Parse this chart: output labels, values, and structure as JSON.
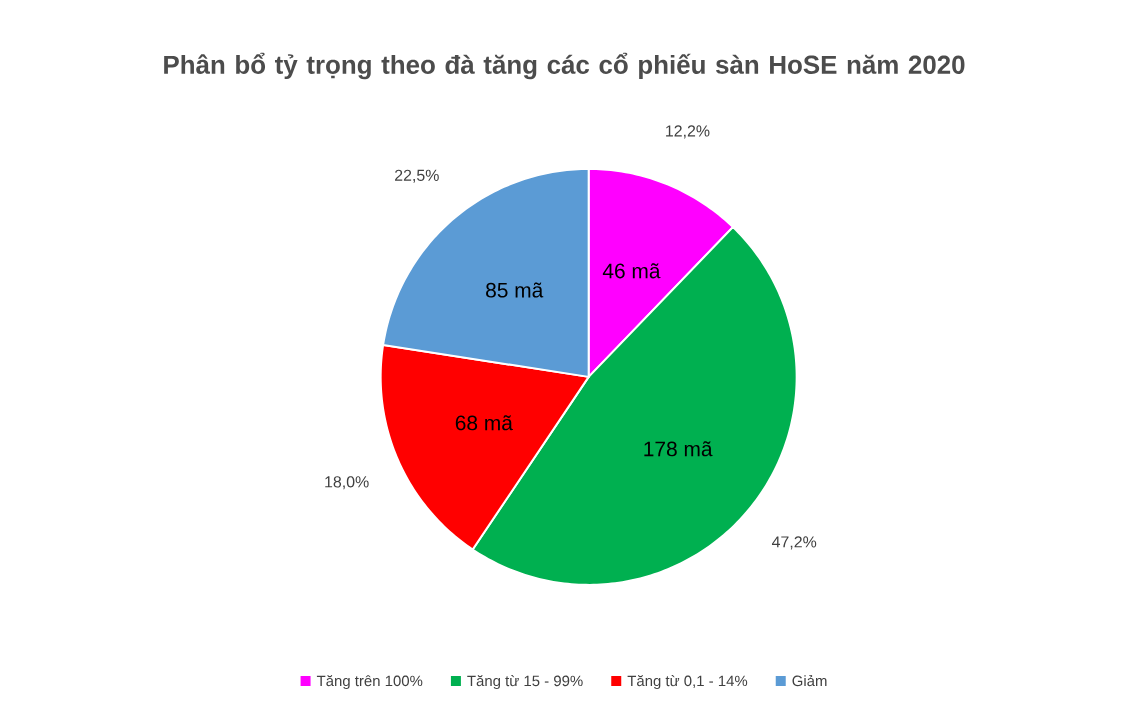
{
  "chart_data": {
    "type": "pie",
    "title": "Phân bổ tỷ trọng theo đà tăng các cổ phiếu sàn HoSE năm 2020",
    "categories": [
      "Tăng trên 100%",
      "Tăng từ 15 - 99%",
      "Tăng từ 0,1 - 14%",
      "Giảm"
    ],
    "values": [
      46,
      178,
      68,
      85
    ],
    "value_labels": [
      "46 mã",
      "178 mã",
      "68 mã",
      "85 mã"
    ],
    "colors": [
      "#ff00ff",
      "#00b050",
      "#ff0000",
      "#5b9bd5"
    ],
    "annotations": [
      "12,2%",
      "47,2%",
      "18,0%",
      "22,5%"
    ],
    "legend": "bottom"
  }
}
